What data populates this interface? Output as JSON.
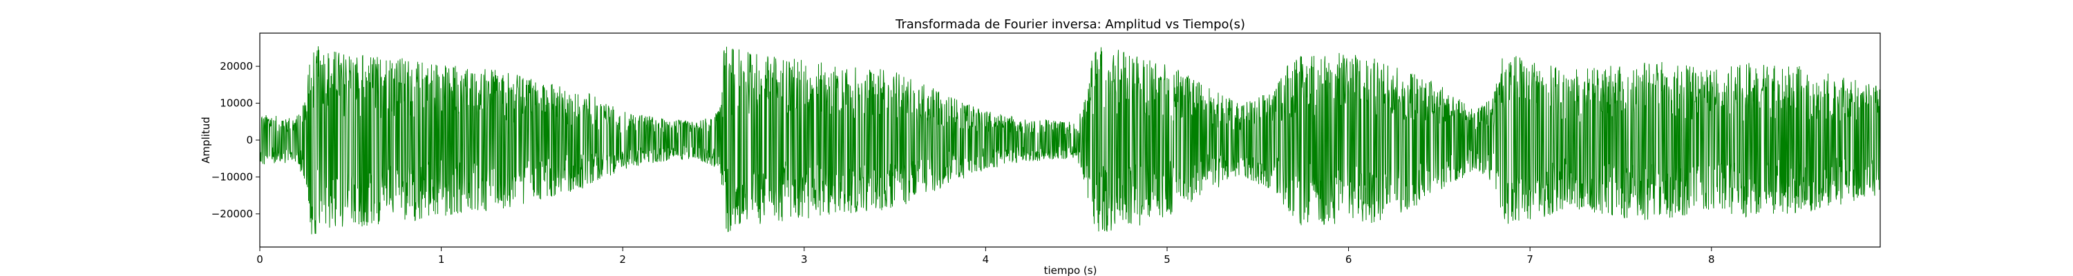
{
  "chart_data": {
    "type": "line",
    "title": "Transformada de Fourier inversa: Amplitud vs Tiempo(s)",
    "xlabel": "tiempo (s)",
    "ylabel": "Amplitud",
    "xlim": [
      0,
      8.93
    ],
    "ylim": [
      -29000,
      29000
    ],
    "x_ticks": [
      0,
      1,
      2,
      3,
      4,
      5,
      6,
      7,
      8
    ],
    "x_tick_labels": [
      "0",
      "1",
      "2",
      "3",
      "4",
      "5",
      "6",
      "7",
      "8"
    ],
    "y_ticks": [
      -20000,
      -10000,
      0,
      10000,
      20000
    ],
    "y_tick_labels": [
      "−20000",
      "−10000",
      "0",
      "10000",
      "20000"
    ],
    "grid": false,
    "series": [
      {
        "color": "#008000",
        "envelope": {
          "t": [
            0,
            0.2,
            0.25,
            0.28,
            0.45,
            0.7,
            1.0,
            1.3,
            1.5,
            1.8,
            2.0,
            2.2,
            2.4,
            2.53,
            2.56,
            2.6,
            2.8,
            3.0,
            3.2,
            3.5,
            3.8,
            4.0,
            4.2,
            4.5,
            4.55,
            4.6,
            4.8,
            5.0,
            5.2,
            5.4,
            5.6,
            5.65,
            5.7,
            5.9,
            6.1,
            6.3,
            6.5,
            6.7,
            6.8,
            6.85,
            7.0,
            7.2,
            7.4,
            7.6,
            7.8,
            8.0,
            8.2,
            8.5,
            8.93
          ],
          "amplitude": [
            7000,
            6000,
            12000,
            26000,
            24000,
            23000,
            21000,
            19000,
            17000,
            13000,
            8000,
            6000,
            5000,
            8000,
            26000,
            25000,
            23000,
            22000,
            20000,
            19000,
            12000,
            8000,
            6000,
            5000,
            12000,
            26000,
            24000,
            21000,
            15000,
            10000,
            14000,
            20000,
            23000,
            24000,
            23000,
            20000,
            15000,
            8000,
            12000,
            24000,
            22000,
            19000,
            20000,
            22000,
            21000,
            19000,
            21000,
            20000,
            15000
          ]
        }
      }
    ]
  }
}
